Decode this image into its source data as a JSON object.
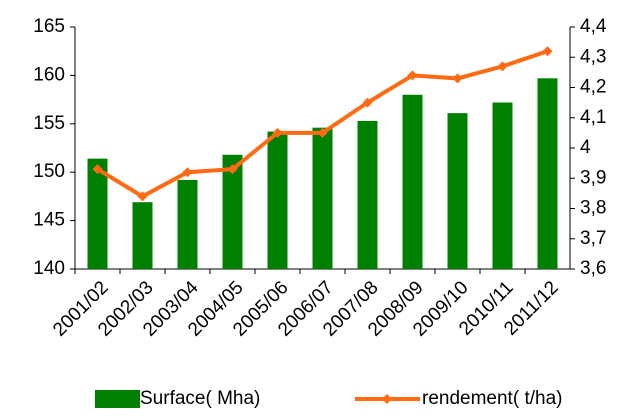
{
  "chart_data": {
    "type": "bar-line",
    "categories": [
      "2001/02",
      "2002/03",
      "2003/04",
      "2004/05",
      "2005/06",
      "2006/07",
      "2007/08",
      "2008/09",
      "2009/10",
      "2010/11",
      "2011/12"
    ],
    "series": [
      {
        "name": "Surface( Mha)",
        "type": "bar",
        "color": "#008000",
        "values": [
          151.4,
          146.9,
          149.2,
          151.8,
          154.2,
          154.6,
          155.3,
          158.0,
          156.1,
          157.2,
          159.7
        ]
      },
      {
        "name": "rendement( t/ha)",
        "type": "line",
        "axis": "y2",
        "color": "#ff6a13",
        "values": [
          3.93,
          3.84,
          3.92,
          3.93,
          4.05,
          4.05,
          4.15,
          4.24,
          4.23,
          4.27,
          4.32
        ]
      }
    ],
    "ylim": [
      140,
      165
    ],
    "yticks": [
      140,
      145,
      150,
      155,
      160,
      165
    ],
    "y2lim": [
      3.6,
      4.4
    ],
    "y2ticks": [
      {
        "value": 3.6,
        "label": "3,6"
      },
      {
        "value": 3.7,
        "label": "3,7"
      },
      {
        "value": 3.8,
        "label": "3,8"
      },
      {
        "value": 3.9,
        "label": "3,9"
      },
      4,
      {
        "value": 4.1,
        "label": "4,1"
      },
      {
        "value": 4.2,
        "label": "4,2"
      },
      {
        "value": 4.3,
        "label": "4,3"
      },
      {
        "value": 4.4,
        "label": "4,4"
      }
    ],
    "grid": false,
    "legend": "bottom"
  }
}
